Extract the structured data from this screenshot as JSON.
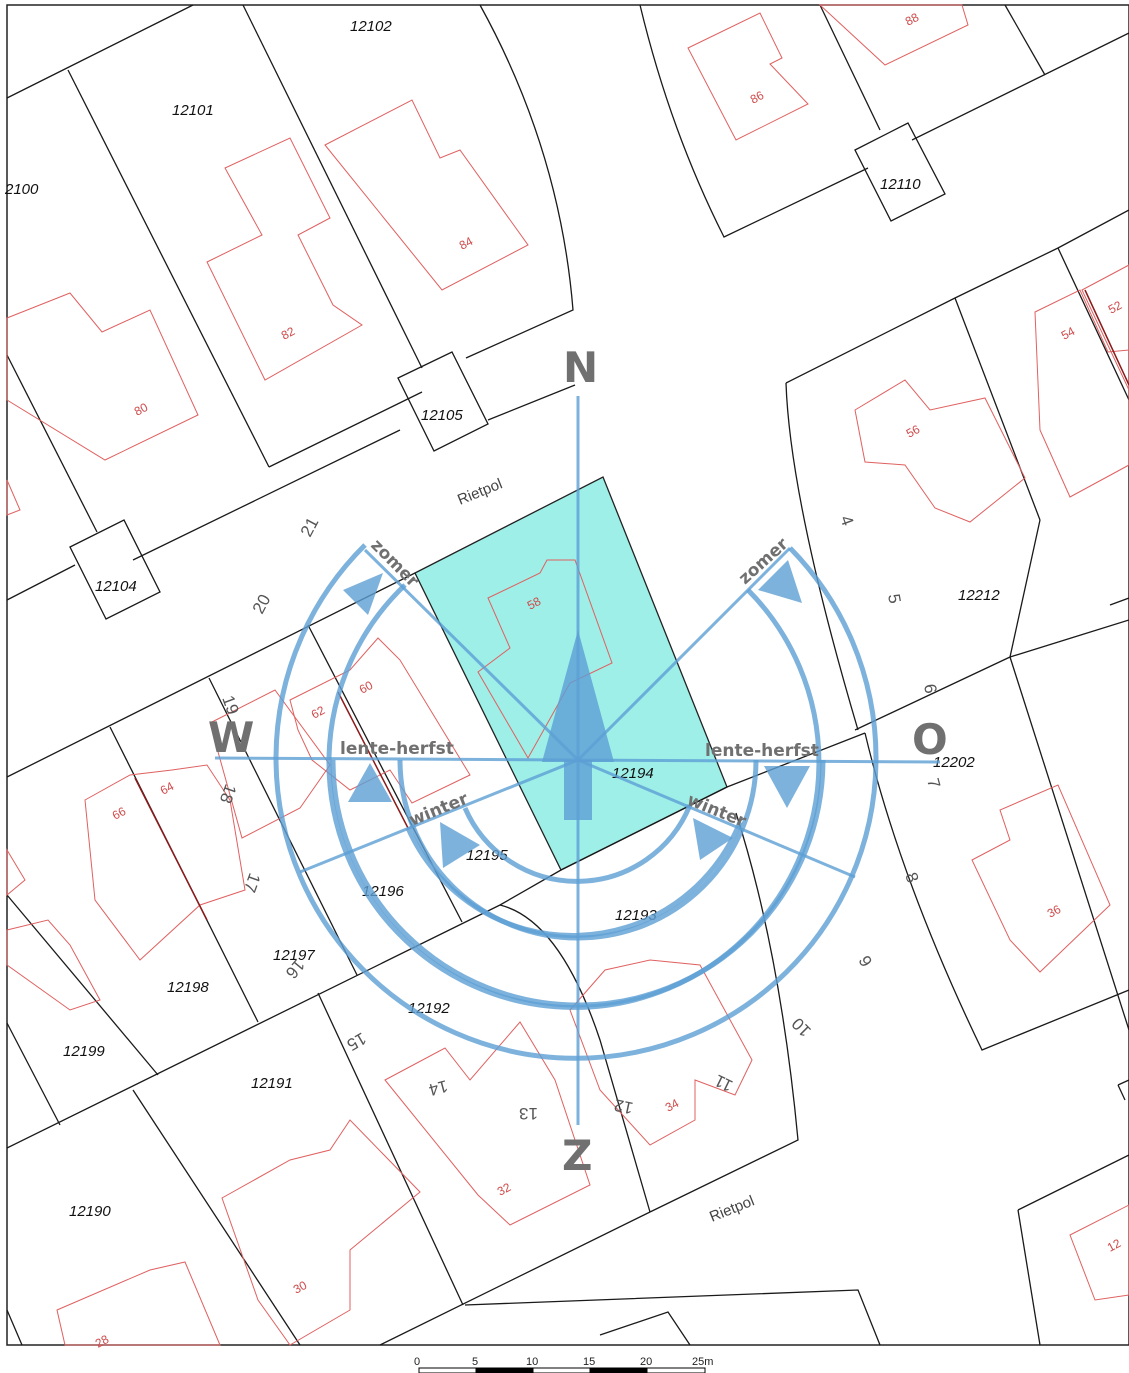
{
  "map": {
    "compass": {
      "north": "N",
      "south": "Z",
      "west": "W",
      "east": "O"
    },
    "seasons": {
      "summer": "zomer",
      "spring_autumn": "lente-herfst",
      "winter": "winter"
    },
    "streets": [
      "Rietpol",
      "Rietpol"
    ],
    "parcels": [
      "12102",
      "12101",
      "2100",
      "12105",
      "12104",
      "12110",
      "12212",
      "12202",
      "12194",
      "12195",
      "12196",
      "12197",
      "12198",
      "12199",
      "12193",
      "12192",
      "12191",
      "12190"
    ],
    "house_numbers": [
      "88",
      "86",
      "84",
      "82",
      "80",
      "58",
      "60",
      "62",
      "64",
      "66",
      "56",
      "54",
      "52",
      "36",
      "34",
      "32",
      "30",
      "28",
      "12"
    ],
    "street_numbers": [
      "21",
      "20",
      "19",
      "18",
      "17",
      "16",
      "15",
      "14",
      "13",
      "12",
      "11",
      "10",
      "9",
      "8",
      "7",
      "6",
      "5",
      "4"
    ],
    "highlight_color": "#9eefe8",
    "sun_color": "#5d9fd4"
  },
  "scale": {
    "ticks": [
      "0",
      "5",
      "10",
      "15",
      "20",
      "25m"
    ]
  }
}
